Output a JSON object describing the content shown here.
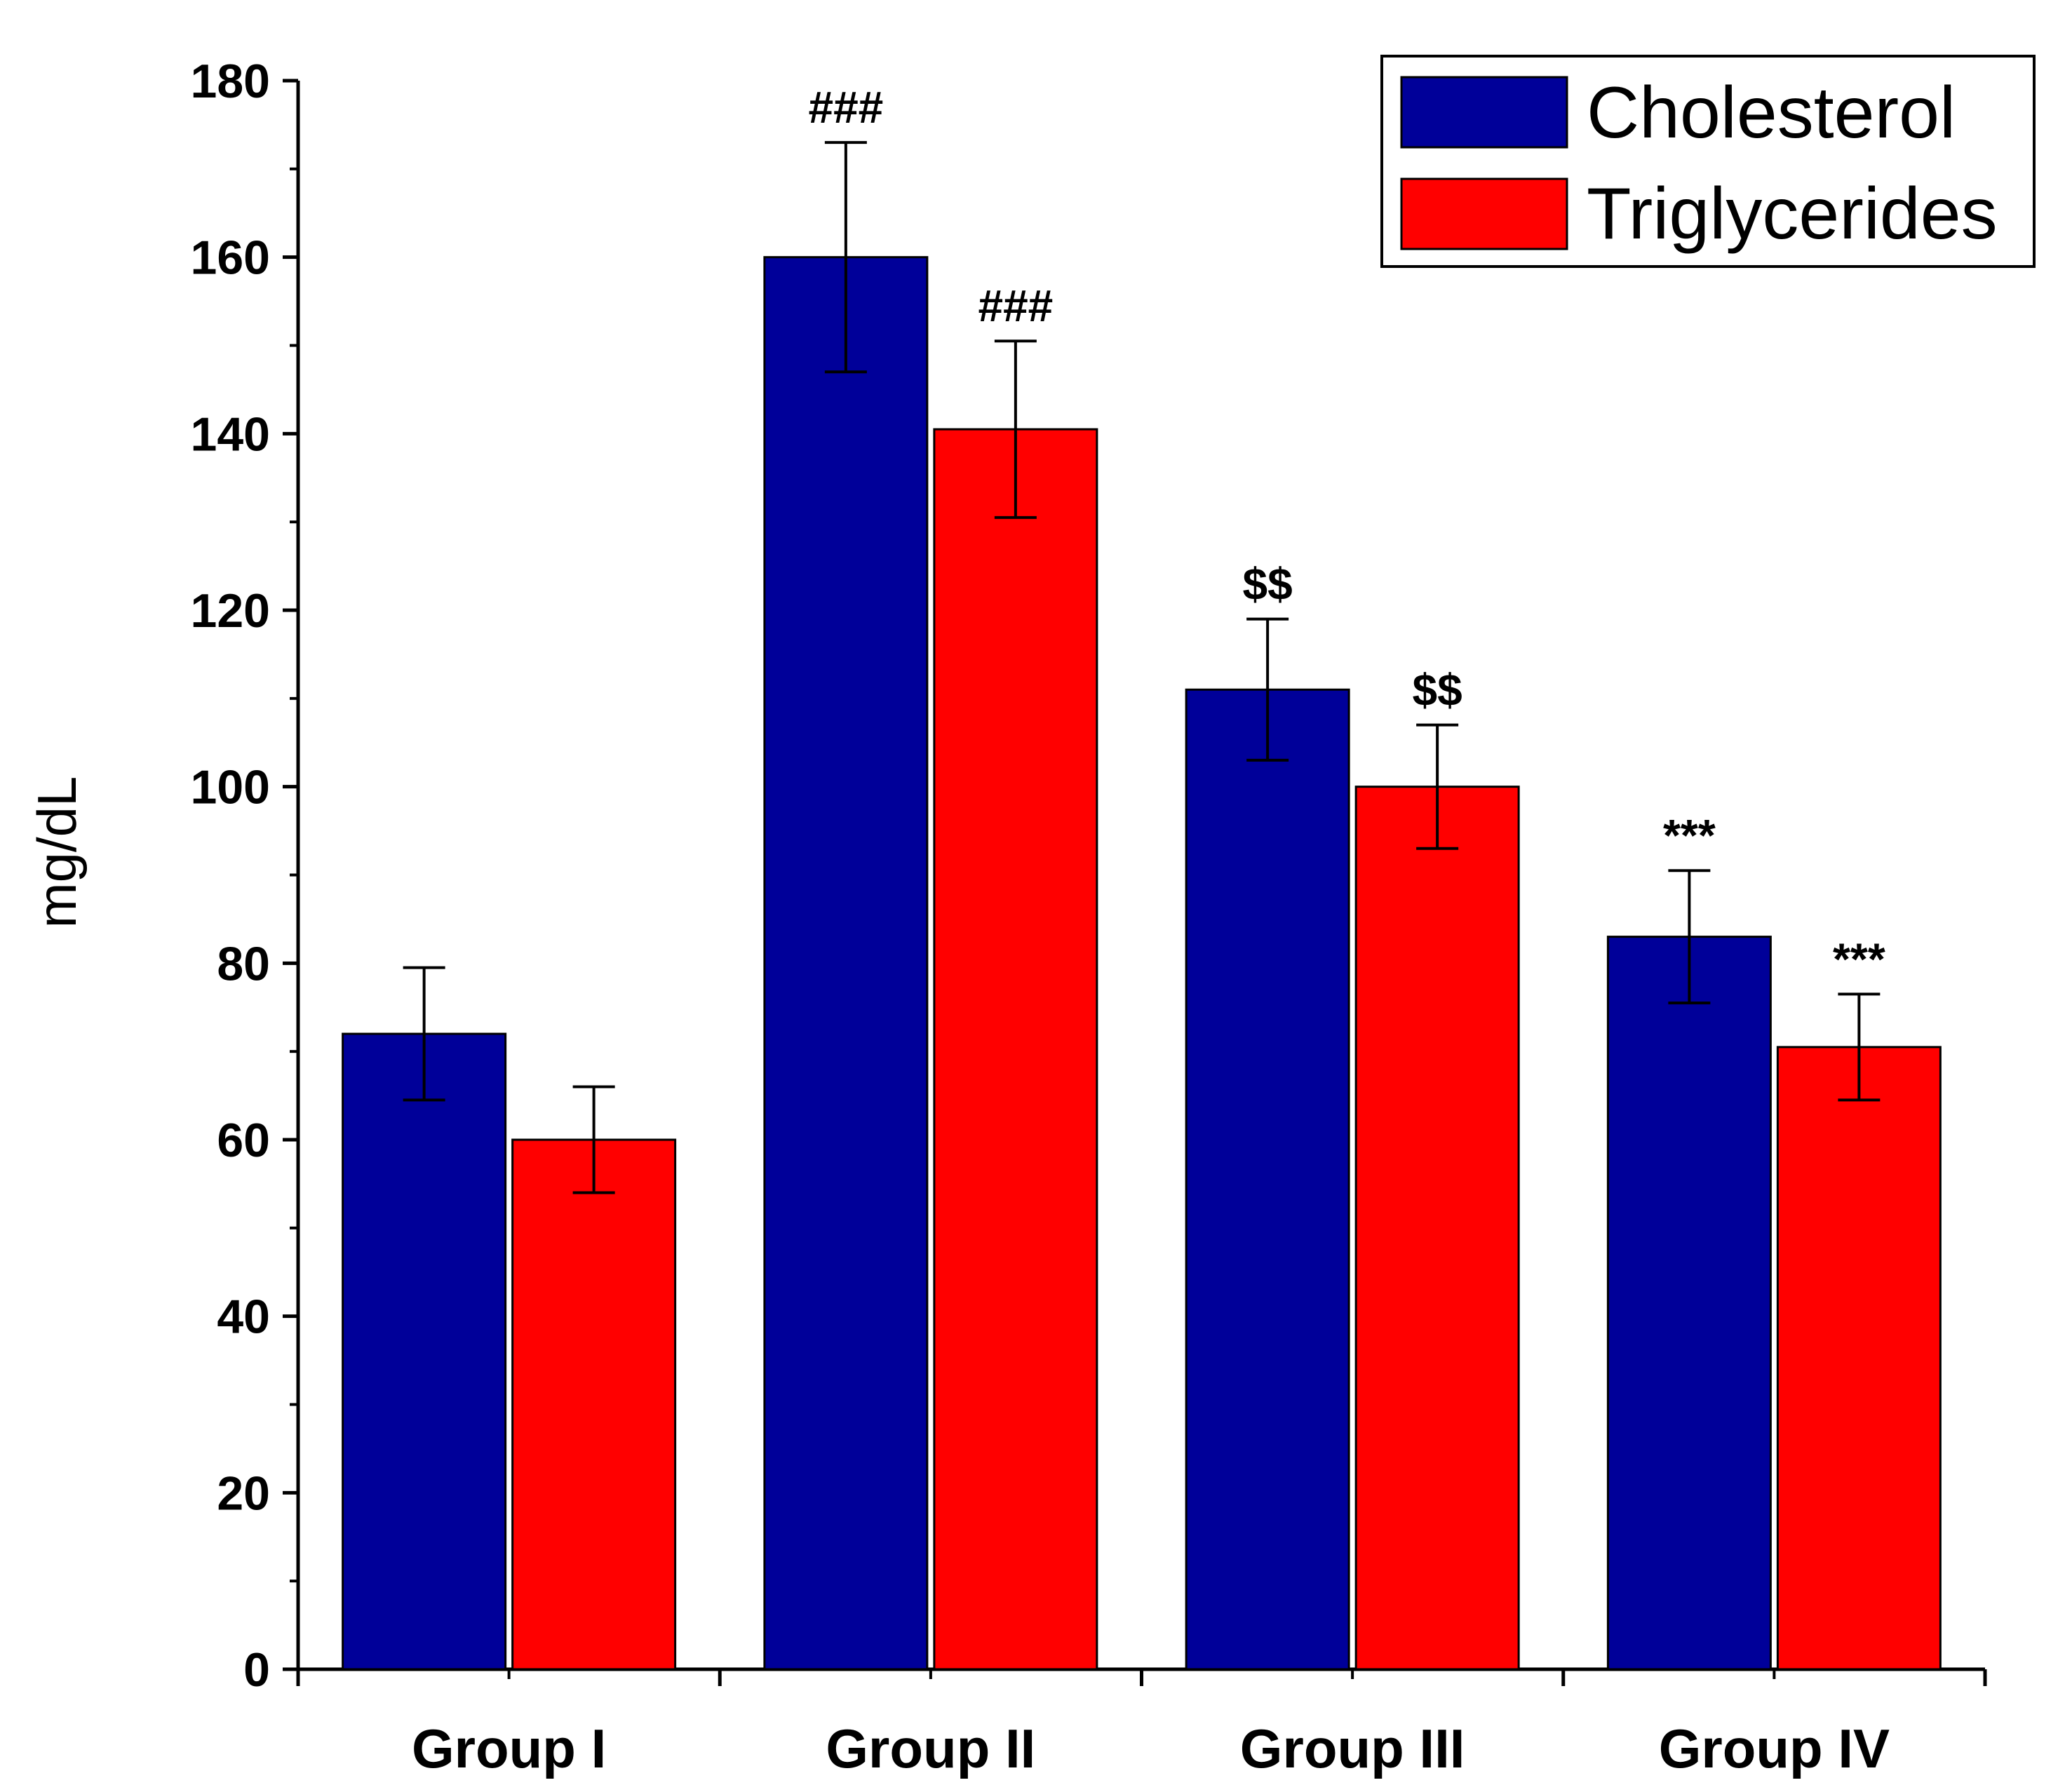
{
  "chart_data": {
    "type": "bar",
    "title": "",
    "xlabel": "",
    "ylabel": "mg/dL",
    "ylim": [
      0,
      180
    ],
    "yticks": [
      0,
      20,
      40,
      60,
      80,
      100,
      120,
      140,
      160,
      180
    ],
    "categories": [
      "Group I",
      "Group II",
      "Group III",
      "Group IV"
    ],
    "series": [
      {
        "name": "Cholesterol",
        "color": "#000099",
        "values": [
          72,
          160,
          111,
          83
        ],
        "errors": [
          7.5,
          13,
          8,
          7.5
        ],
        "annotations": [
          "",
          "###",
          "$$",
          "***"
        ]
      },
      {
        "name": "Triglycerides",
        "color": "#ff0000",
        "values": [
          60,
          140.5,
          100,
          70.5
        ],
        "errors": [
          6,
          10,
          7,
          6
        ],
        "annotations": [
          "",
          "###",
          "$$",
          "***"
        ]
      }
    ],
    "legend_position": "top-right",
    "grid": false
  }
}
